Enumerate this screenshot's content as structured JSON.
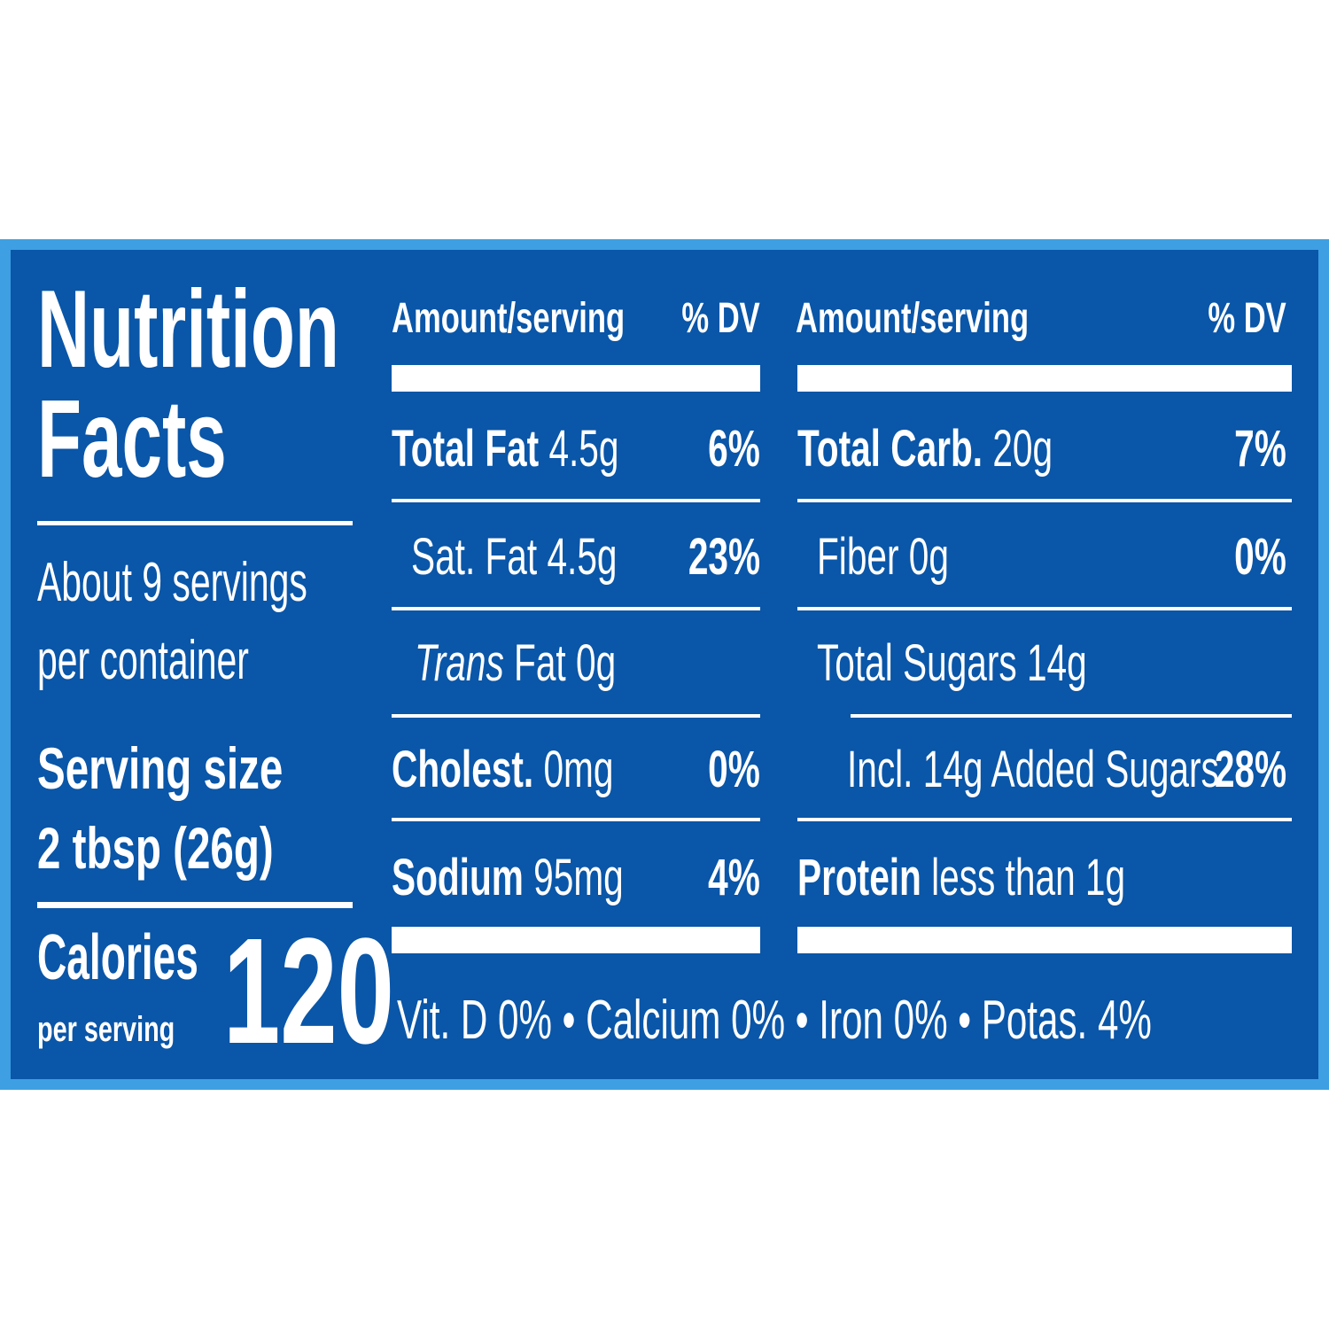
{
  "label": {
    "title_line1": "Nutrition",
    "title_line2": "Facts",
    "servings_line1": "About 9 servings",
    "servings_line2": "per container",
    "serving_size_label": "Serving size",
    "serving_size_value": "2 tbsp (26g)",
    "calories_label": "Calories",
    "calories_sub": "per serving",
    "calories_value": "120",
    "colors": {
      "border": "#3e9fe3",
      "panel": "#0a56a8",
      "text": "#ffffff"
    }
  },
  "left_table": {
    "header_amount": "Amount/serving",
    "header_dv": "% DV",
    "rows": [
      {
        "name": "Total Fat",
        "amount": "4.5g",
        "dv": "6%"
      },
      {
        "name": "Sat. Fat",
        "amount": "4.5g",
        "dv": "23%"
      },
      {
        "name": "Trans",
        "amount": "Fat 0g",
        "dv": ""
      },
      {
        "name": "Cholest.",
        "amount": "0mg",
        "dv": "0%"
      },
      {
        "name": "Sodium",
        "amount": "95mg",
        "dv": "4%"
      }
    ]
  },
  "right_table": {
    "header_amount": "Amount/serving",
    "header_dv": "% DV",
    "rows": [
      {
        "name": "Total Carb.",
        "amount": "20g",
        "dv": "7%"
      },
      {
        "name": "Fiber",
        "amount": "0g",
        "dv": "0%"
      },
      {
        "name": "Total Sugars",
        "amount": "14g",
        "dv": ""
      },
      {
        "name": "Incl. 14g Added Sugars",
        "amount": "",
        "dv": "28%"
      },
      {
        "name": "Protein",
        "amount": "less than 1g",
        "dv": ""
      }
    ]
  },
  "vitamins": "Vit. D 0% • Calcium 0% • Iron 0% • Potas. 4%"
}
